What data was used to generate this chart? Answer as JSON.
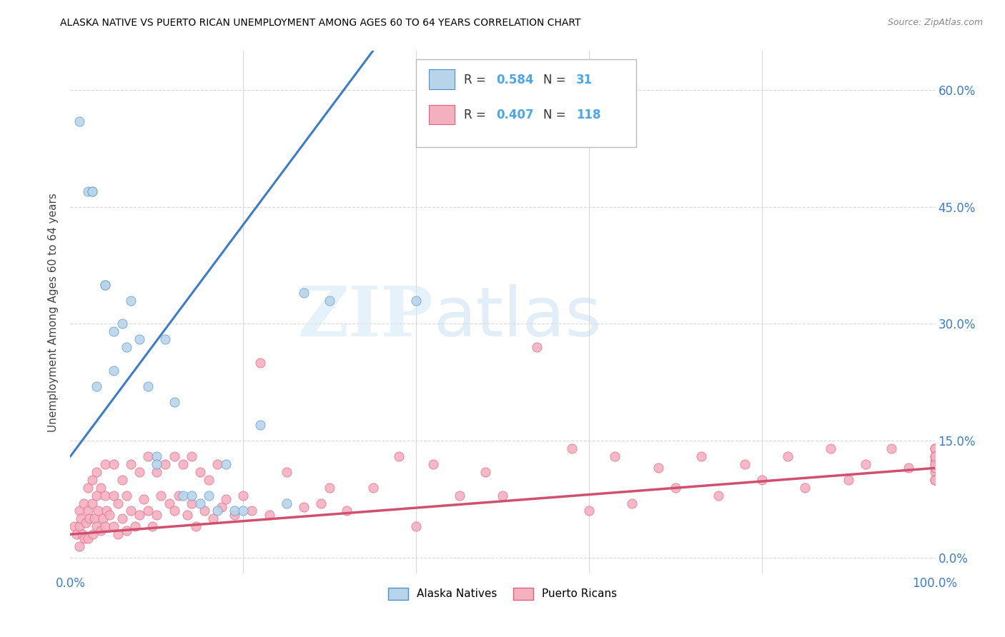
{
  "title": "ALASKA NATIVE VS PUERTO RICAN UNEMPLOYMENT AMONG AGES 60 TO 64 YEARS CORRELATION CHART",
  "source": "Source: ZipAtlas.com",
  "ylabel": "Unemployment Among Ages 60 to 64 years",
  "yticks_labels": [
    "0.0%",
    "15.0%",
    "30.0%",
    "45.0%",
    "60.0%"
  ],
  "ytick_values": [
    0.0,
    0.15,
    0.3,
    0.45,
    0.6
  ],
  "xlim": [
    0.0,
    1.0
  ],
  "ylim": [
    -0.02,
    0.65
  ],
  "alaska_R": 0.584,
  "alaska_N": 31,
  "pr_R": 0.407,
  "pr_N": 118,
  "alaska_dot_color": "#b8d4ea",
  "alaska_edge_color": "#5090c8",
  "alaska_line_color": "#3d7cc9",
  "pr_dot_color": "#f5b0c0",
  "pr_edge_color": "#e06080",
  "pr_line_color": "#d05070",
  "text_blue": "#4da6e8",
  "grid_color": "#d8d8d8",
  "alaska_line_x0": 0.0,
  "alaska_line_y0": 0.13,
  "alaska_line_x1": 0.35,
  "alaska_line_y1": 0.65,
  "pr_line_x0": 0.0,
  "pr_line_y0": 0.03,
  "pr_line_x1": 1.0,
  "pr_line_y1": 0.115,
  "alaska_x": [
    0.01,
    0.02,
    0.025,
    0.025,
    0.03,
    0.04,
    0.04,
    0.05,
    0.05,
    0.06,
    0.065,
    0.07,
    0.08,
    0.09,
    0.1,
    0.1,
    0.11,
    0.12,
    0.13,
    0.14,
    0.15,
    0.16,
    0.17,
    0.18,
    0.19,
    0.2,
    0.22,
    0.25,
    0.27,
    0.3,
    0.4
  ],
  "alaska_y": [
    0.56,
    0.47,
    0.47,
    0.47,
    0.22,
    0.35,
    0.35,
    0.29,
    0.24,
    0.3,
    0.27,
    0.33,
    0.28,
    0.22,
    0.13,
    0.12,
    0.28,
    0.2,
    0.08,
    0.08,
    0.07,
    0.08,
    0.06,
    0.12,
    0.06,
    0.06,
    0.17,
    0.07,
    0.34,
    0.33,
    0.33
  ],
  "pr_x": [
    0.005,
    0.007,
    0.01,
    0.01,
    0.01,
    0.012,
    0.014,
    0.015,
    0.016,
    0.018,
    0.02,
    0.02,
    0.02,
    0.022,
    0.025,
    0.025,
    0.026,
    0.028,
    0.03,
    0.03,
    0.03,
    0.032,
    0.035,
    0.035,
    0.038,
    0.04,
    0.04,
    0.04,
    0.042,
    0.045,
    0.05,
    0.05,
    0.05,
    0.055,
    0.055,
    0.06,
    0.06,
    0.065,
    0.065,
    0.07,
    0.07,
    0.075,
    0.08,
    0.08,
    0.085,
    0.09,
    0.09,
    0.095,
    0.1,
    0.1,
    0.105,
    0.11,
    0.115,
    0.12,
    0.12,
    0.125,
    0.13,
    0.135,
    0.14,
    0.14,
    0.145,
    0.15,
    0.155,
    0.16,
    0.165,
    0.17,
    0.175,
    0.18,
    0.19,
    0.2,
    0.21,
    0.22,
    0.23,
    0.25,
    0.27,
    0.29,
    0.3,
    0.32,
    0.35,
    0.38,
    0.4,
    0.42,
    0.45,
    0.48,
    0.5,
    0.54,
    0.58,
    0.6,
    0.63,
    0.65,
    0.68,
    0.7,
    0.73,
    0.75,
    0.78,
    0.8,
    0.83,
    0.85,
    0.88,
    0.9,
    0.92,
    0.95,
    0.97,
    1.0,
    1.0,
    1.0,
    1.0,
    1.0,
    1.0,
    1.0,
    1.0,
    1.0,
    1.0,
    1.0,
    1.0,
    1.0,
    1.0,
    1.0
  ],
  "pr_y": [
    0.04,
    0.03,
    0.06,
    0.04,
    0.015,
    0.05,
    0.03,
    0.07,
    0.025,
    0.045,
    0.09,
    0.06,
    0.025,
    0.05,
    0.1,
    0.07,
    0.03,
    0.05,
    0.11,
    0.08,
    0.04,
    0.06,
    0.09,
    0.035,
    0.05,
    0.12,
    0.08,
    0.04,
    0.06,
    0.055,
    0.12,
    0.08,
    0.04,
    0.07,
    0.03,
    0.1,
    0.05,
    0.08,
    0.035,
    0.12,
    0.06,
    0.04,
    0.11,
    0.055,
    0.075,
    0.13,
    0.06,
    0.04,
    0.11,
    0.055,
    0.08,
    0.12,
    0.07,
    0.13,
    0.06,
    0.08,
    0.12,
    0.055,
    0.13,
    0.07,
    0.04,
    0.11,
    0.06,
    0.1,
    0.05,
    0.12,
    0.065,
    0.075,
    0.055,
    0.08,
    0.06,
    0.25,
    0.055,
    0.11,
    0.065,
    0.07,
    0.09,
    0.06,
    0.09,
    0.13,
    0.04,
    0.12,
    0.08,
    0.11,
    0.08,
    0.27,
    0.14,
    0.06,
    0.13,
    0.07,
    0.115,
    0.09,
    0.13,
    0.08,
    0.12,
    0.1,
    0.13,
    0.09,
    0.14,
    0.1,
    0.12,
    0.14,
    0.115,
    0.14,
    0.11,
    0.125,
    0.13,
    0.1,
    0.14,
    0.115,
    0.12,
    0.1,
    0.14,
    0.13,
    0.115,
    0.12,
    0.1,
    0.13
  ]
}
